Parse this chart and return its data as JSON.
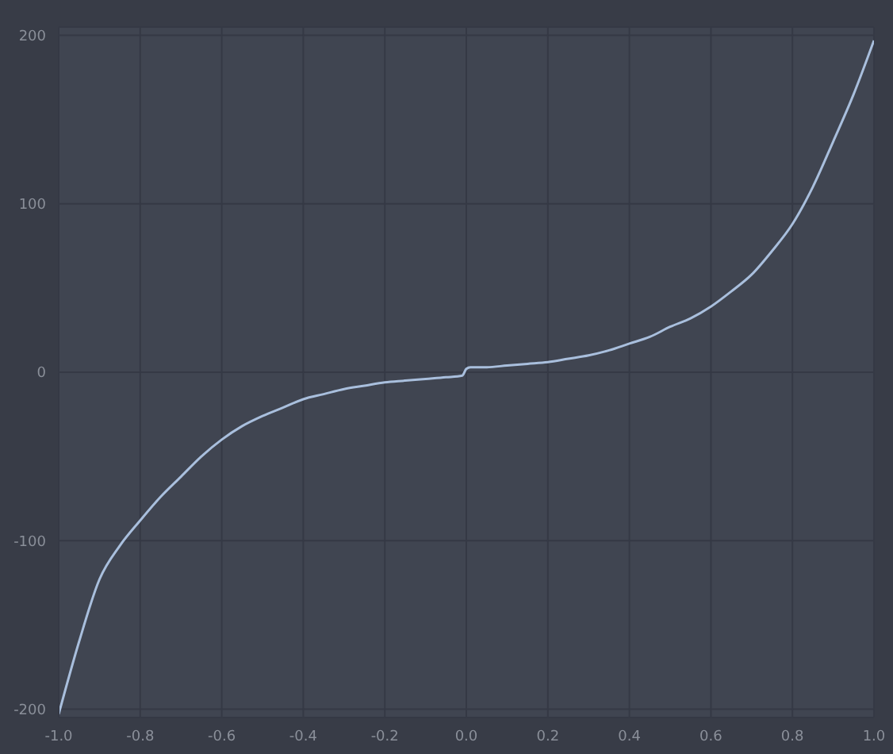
{
  "chart_data": {
    "type": "line",
    "x": [
      -1.0,
      -0.95,
      -0.9,
      -0.85,
      -0.8,
      -0.75,
      -0.7,
      -0.65,
      -0.6,
      -0.55,
      -0.5,
      -0.45,
      -0.4,
      -0.35,
      -0.3,
      -0.25,
      -0.2,
      -0.15,
      -0.1,
      -0.05,
      -0.01,
      0.0,
      0.01,
      0.05,
      0.1,
      0.15,
      0.2,
      0.25,
      0.3,
      0.35,
      0.4,
      0.45,
      0.5,
      0.55,
      0.6,
      0.65,
      0.7,
      0.75,
      0.8,
      0.85,
      0.9,
      0.95,
      1.0
    ],
    "series": [
      {
        "color": "#a9bfdd",
        "values": [
          -203,
          -160,
          -123,
          -103,
          -88,
          -74,
          -62,
          -50,
          -40,
          -32,
          -26,
          -21,
          -16,
          -13,
          -10,
          -8,
          -6,
          -5,
          -4,
          -3,
          -2,
          2,
          3,
          3,
          4,
          5,
          6,
          8,
          10,
          13,
          17,
          21,
          27,
          32,
          39,
          48,
          58,
          72,
          88,
          110,
          137,
          165,
          197
        ]
      }
    ],
    "xlim": [
      -1.0,
      1.0
    ],
    "xticks": [
      {
        "value": -1,
        "label": "-1.0"
      },
      -0.8,
      -0.6,
      -0.4,
      -0.2,
      {
        "value": 0,
        "label": "0.0"
      },
      0.2,
      0.4,
      0.6,
      0.8,
      {
        "value": 1,
        "label": "1.0"
      }
    ],
    "ylim": [
      -205,
      205
    ],
    "yticks": [
      -200,
      -100,
      0,
      100,
      200
    ],
    "grid": true,
    "marker": "none",
    "line_style": "solid",
    "legend": false
  }
}
